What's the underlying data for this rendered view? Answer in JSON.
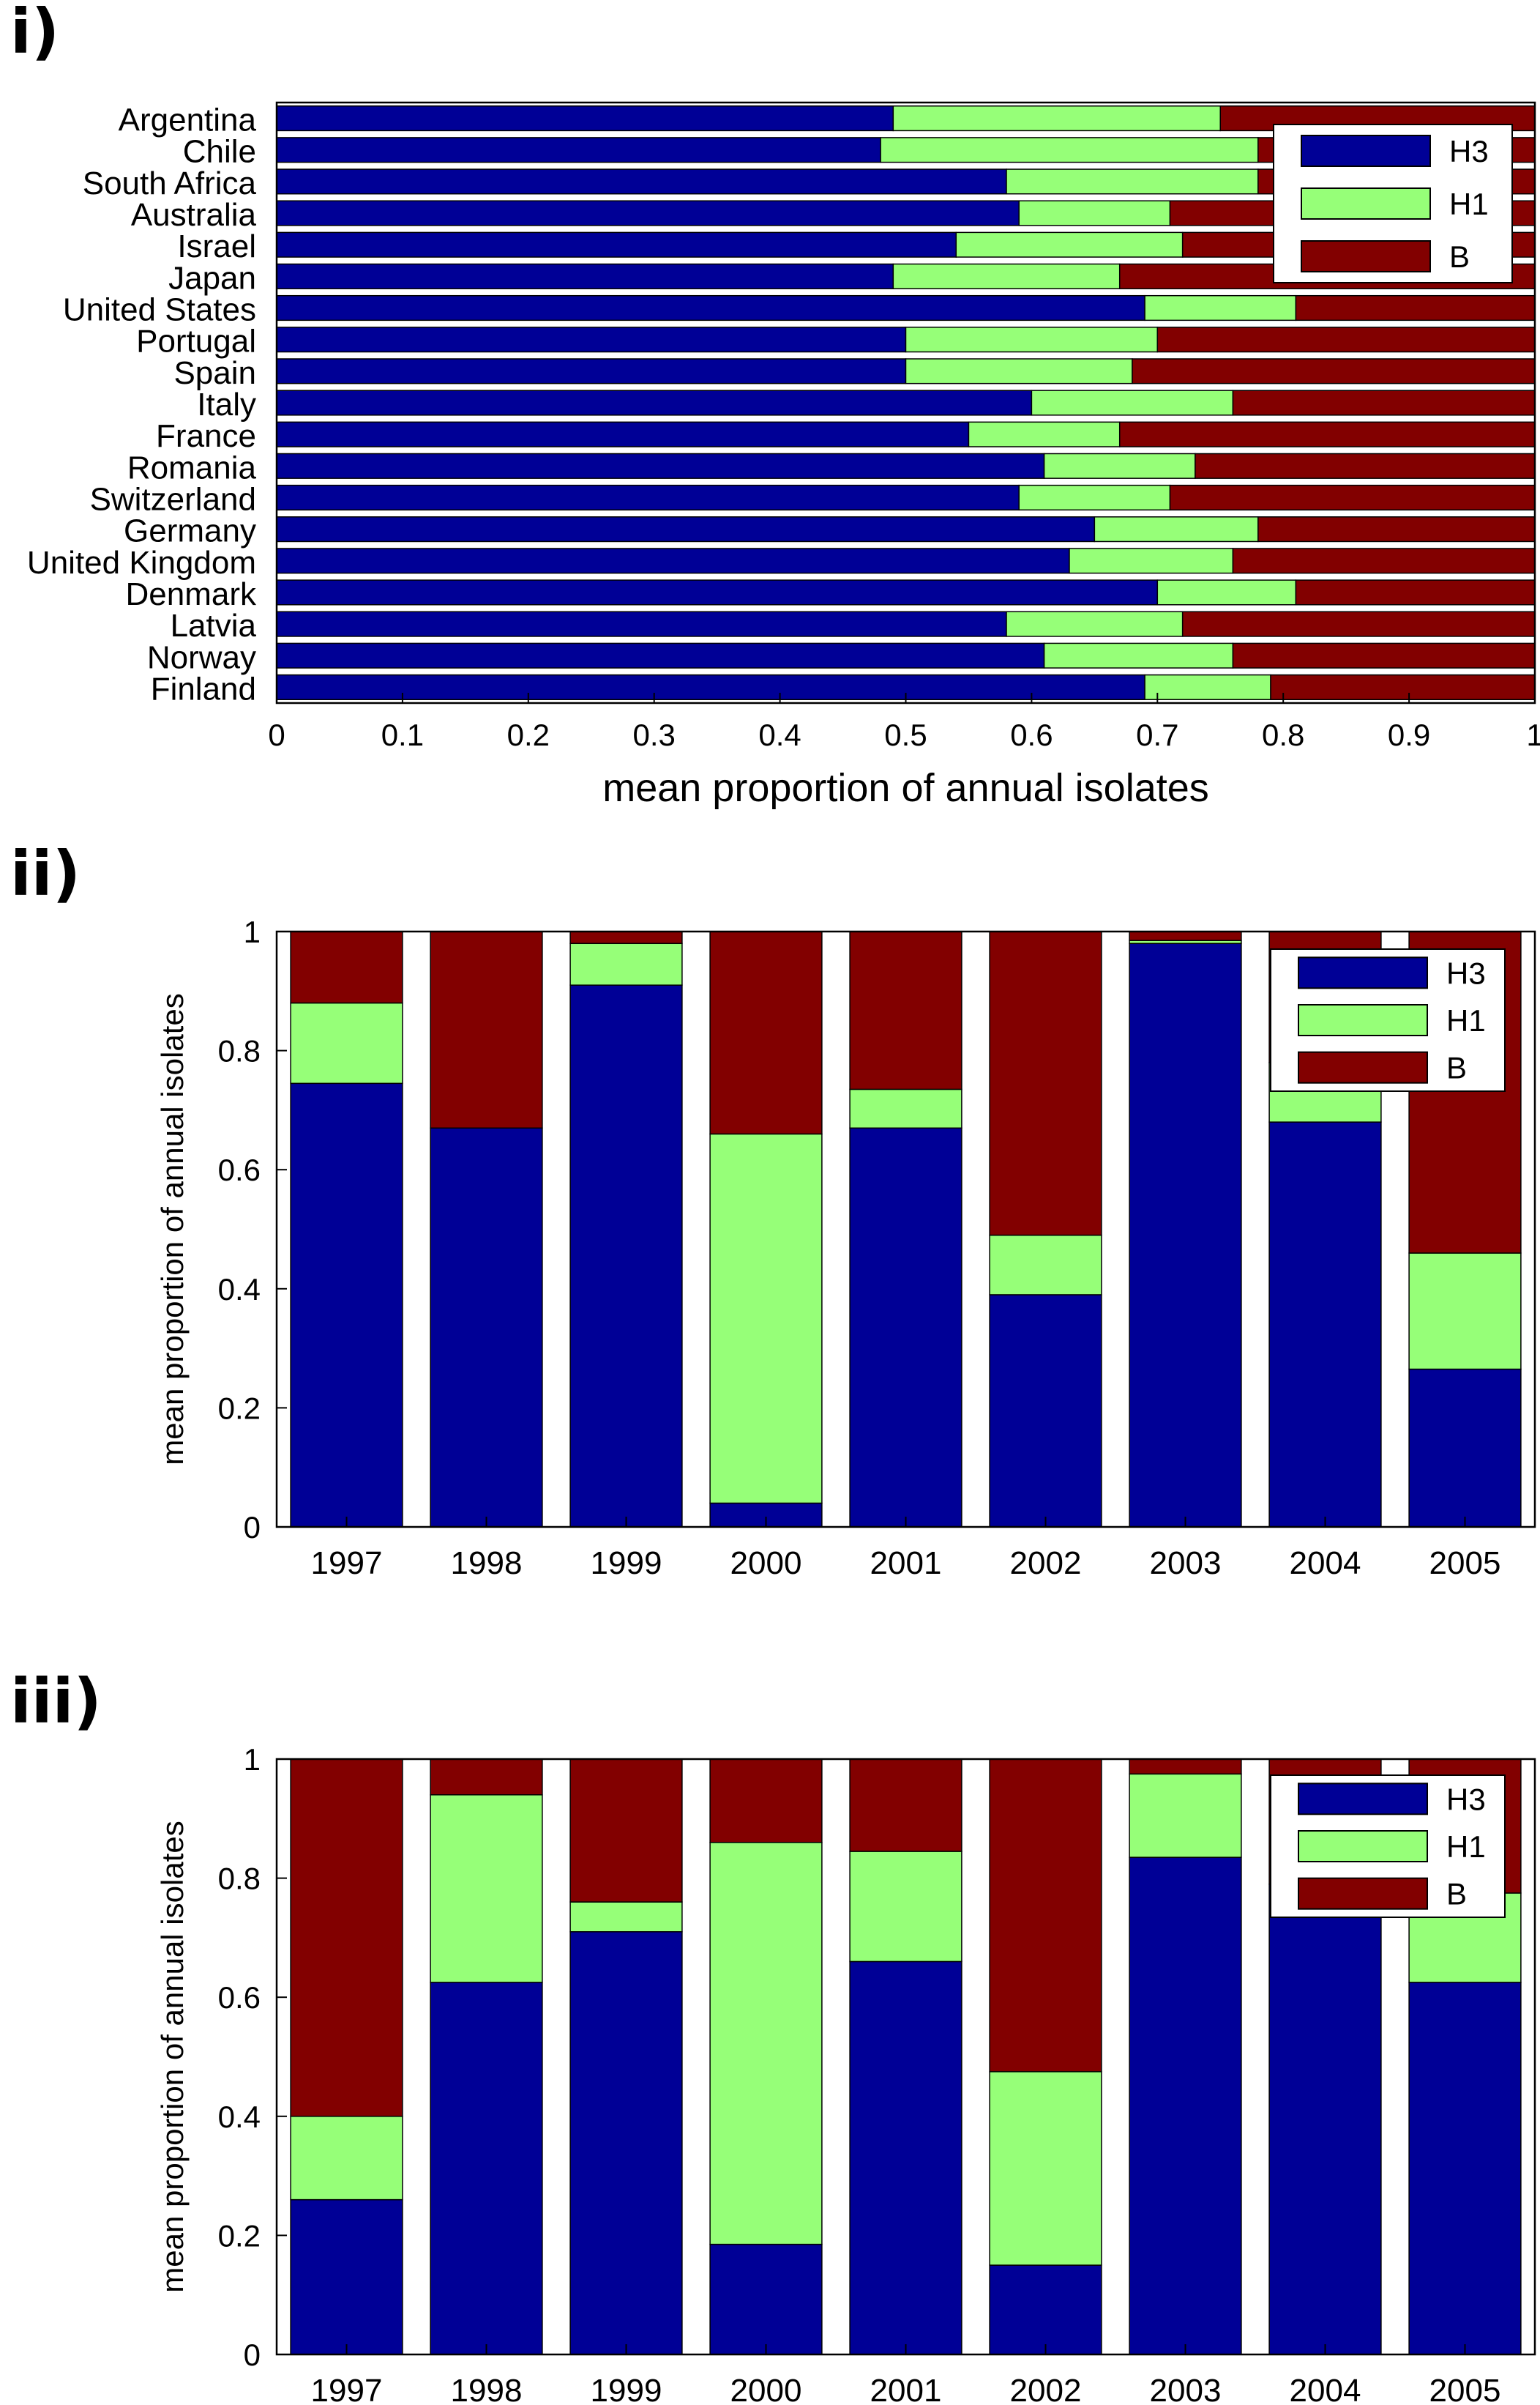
{
  "panels": [
    {
      "label": "i)"
    },
    {
      "label": "ii)"
    },
    {
      "label": "iii)"
    }
  ],
  "colors": {
    "H3": "#000096",
    "H1": "#96ff78",
    "B": "#820000"
  },
  "chart_data": [
    {
      "type": "bar",
      "orientation": "horizontal",
      "stacked": true,
      "categories": [
        "Argentina",
        "Chile",
        "South Africa",
        "Australia",
        "Israel",
        "Japan",
        "United States",
        "Portugal",
        "Spain",
        "Italy",
        "France",
        "Romania",
        "Switzerland",
        "Germany",
        "United Kingdom",
        "Denmark",
        "Latvia",
        "Norway",
        "Finland"
      ],
      "series": [
        {
          "name": "H3",
          "values": [
            0.49,
            0.48,
            0.58,
            0.59,
            0.54,
            0.49,
            0.69,
            0.5,
            0.5,
            0.6,
            0.55,
            0.61,
            0.59,
            0.65,
            0.63,
            0.7,
            0.58,
            0.61,
            0.69
          ]
        },
        {
          "name": "H1",
          "values": [
            0.26,
            0.3,
            0.2,
            0.12,
            0.18,
            0.18,
            0.12,
            0.2,
            0.18,
            0.16,
            0.12,
            0.12,
            0.12,
            0.13,
            0.13,
            0.11,
            0.14,
            0.15,
            0.1
          ]
        },
        {
          "name": "B",
          "values": [
            0.25,
            0.22,
            0.22,
            0.29,
            0.28,
            0.33,
            0.19,
            0.3,
            0.32,
            0.24,
            0.33,
            0.27,
            0.29,
            0.22,
            0.24,
            0.19,
            0.28,
            0.24,
            0.21
          ]
        }
      ],
      "xlabel": "mean proportion of annual isolates",
      "ylabel": "",
      "xlim": [
        0,
        1
      ],
      "xticks": [
        "0",
        "0.1",
        "0.2",
        "0.3",
        "0.4",
        "0.5",
        "0.6",
        "0.7",
        "0.8",
        "0.9",
        "1"
      ],
      "legend": [
        "H3",
        "H1",
        "B"
      ],
      "legend_position": "top-right"
    },
    {
      "type": "bar",
      "stacked": true,
      "categories": [
        "1997",
        "1998",
        "1999",
        "2000",
        "2001",
        "2002",
        "2003",
        "2004",
        "2005"
      ],
      "series": [
        {
          "name": "H3",
          "values": [
            0.745,
            0.67,
            0.91,
            0.04,
            0.67,
            0.39,
            0.98,
            0.68,
            0.265
          ]
        },
        {
          "name": "H1",
          "values": [
            0.135,
            0.0,
            0.07,
            0.62,
            0.065,
            0.1,
            0.005,
            0.1,
            0.195
          ]
        },
        {
          "name": "B",
          "values": [
            0.12,
            0.33,
            0.02,
            0.34,
            0.265,
            0.51,
            0.015,
            0.22,
            0.54
          ]
        }
      ],
      "xlabel": "",
      "ylabel": "mean proportion of annual isolates",
      "ylim": [
        0,
        1
      ],
      "yticks": [
        "0",
        "0.2",
        "0.4",
        "0.6",
        "0.8",
        "1"
      ],
      "legend": [
        "H3",
        "H1",
        "B"
      ],
      "legend_position": "top-right"
    },
    {
      "type": "bar",
      "stacked": true,
      "categories": [
        "1997",
        "1998",
        "1999",
        "2000",
        "2001",
        "2002",
        "2003",
        "2004",
        "2005"
      ],
      "series": [
        {
          "name": "H3",
          "values": [
            0.26,
            0.625,
            0.71,
            0.185,
            0.66,
            0.15,
            0.835,
            0.79,
            0.625
          ]
        },
        {
          "name": "H1",
          "values": [
            0.14,
            0.315,
            0.05,
            0.675,
            0.185,
            0.325,
            0.14,
            0.0,
            0.15
          ]
        },
        {
          "name": "B",
          "values": [
            0.6,
            0.06,
            0.24,
            0.14,
            0.155,
            0.525,
            0.025,
            0.21,
            0.225
          ]
        }
      ],
      "xlabel": "",
      "ylabel": "mean proportion of annual isolates",
      "ylim": [
        0,
        1
      ],
      "yticks": [
        "0",
        "0.2",
        "0.4",
        "0.6",
        "0.8",
        "1"
      ],
      "legend": [
        "H3",
        "H1",
        "B"
      ],
      "legend_position": "top-right"
    }
  ]
}
